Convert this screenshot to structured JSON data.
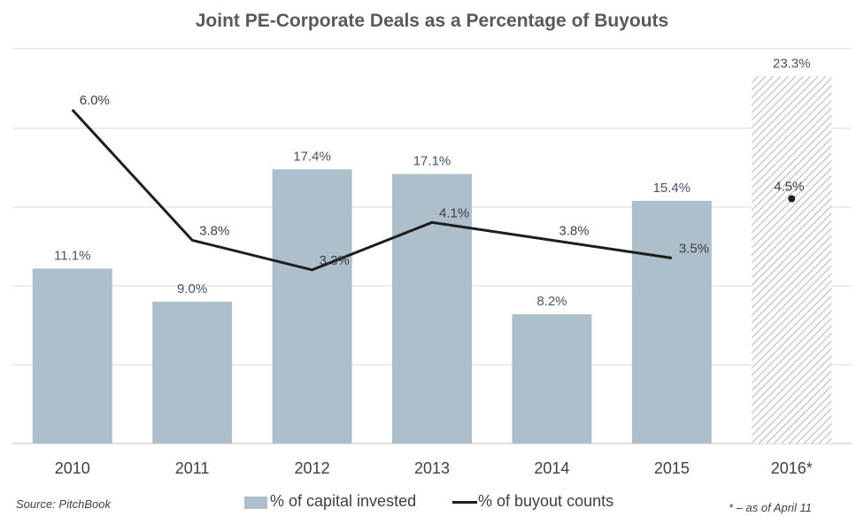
{
  "chart_data": {
    "type": "bar",
    "title": "Joint PE-Corporate Deals as a Percentage of Buyouts",
    "categories": [
      "2010",
      "2011",
      "2012",
      "2013",
      "2014",
      "2015",
      "2016*"
    ],
    "series": [
      {
        "name": "% of capital invested",
        "type": "bar",
        "values": [
          11.1,
          9.0,
          17.4,
          17.1,
          8.2,
          15.4,
          23.3
        ],
        "labels": [
          "11.1%",
          "9.0%",
          "17.4%",
          "17.1%",
          "8.2%",
          "15.4%",
          "23.3%"
        ],
        "color": "#adbfca"
      },
      {
        "name": "% of buyout counts",
        "type": "line",
        "values": [
          6.0,
          3.8,
          3.3,
          4.1,
          3.8,
          3.5,
          4.5
        ],
        "labels": [
          "6.0%",
          "3.8%",
          "3.3%",
          "4.1%",
          "3.8%",
          "3.5%",
          "4.5%"
        ],
        "color": "#1e1e1e"
      }
    ],
    "highlighted_category": "2016*",
    "grid": true,
    "legend_position": "bottom"
  },
  "source": "Source: PitchBook",
  "footnote": "* – as of April 11",
  "legend": {
    "bar_label": "% of capital invested",
    "line_label": "% of buyout counts"
  }
}
